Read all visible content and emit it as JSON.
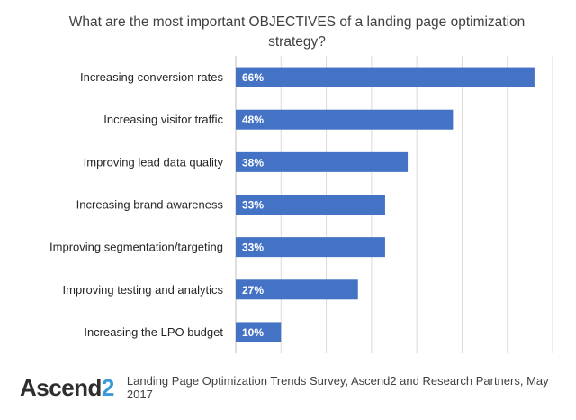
{
  "chart_data": {
    "type": "bar",
    "orientation": "horizontal",
    "title": "What are the most important OBJECTIVES of a landing page optimization strategy?",
    "categories": [
      "Increasing conversion rates",
      "Increasing visitor traffic",
      "Improving lead data quality",
      "Increasing brand awareness",
      "Improving segmentation/targeting",
      "Improving testing and analytics",
      "Increasing the LPO budget"
    ],
    "values": [
      66,
      48,
      38,
      33,
      33,
      27,
      10
    ],
    "value_labels": [
      "66%",
      "48%",
      "38%",
      "33%",
      "33%",
      "27%",
      "10%"
    ],
    "xlim": [
      0,
      70
    ],
    "grid": "vertical",
    "bar_color": "#4472c4"
  },
  "footer": {
    "brand_main": "Ascend",
    "brand_accent": "2",
    "source": "Landing Page Optimization Trends Survey, Ascend2 and Research Partners, May 2017"
  }
}
